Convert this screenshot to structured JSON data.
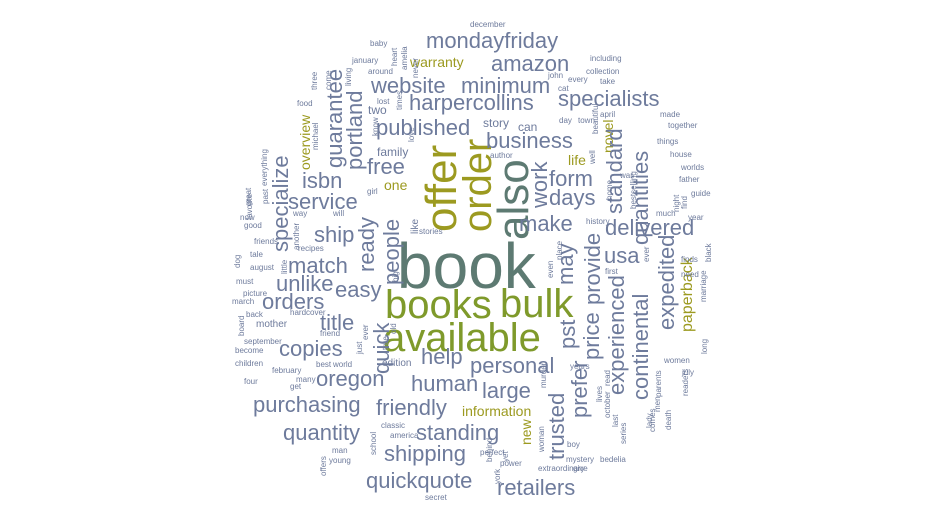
{
  "palette": {
    "background": "#ffffff",
    "slate": "#6e7b9c",
    "olive": "#7f9a2b",
    "teal": "#5d7a72",
    "mustard": "#9c9a20",
    "blue_gray": "#8090b0"
  },
  "words": [
    {
      "text": "book",
      "color": "#5d7a72"
    },
    {
      "text": "offer",
      "color": "#9c9a20"
    },
    {
      "text": "order",
      "color": "#9c9a20"
    },
    {
      "text": "also",
      "color": "#5d7a72"
    },
    {
      "text": "books",
      "color": "#7f9a2b"
    },
    {
      "text": "bulk",
      "color": "#7f9a2b"
    },
    {
      "text": "available",
      "color": "#7f9a2b"
    },
    {
      "text": "mondayfriday",
      "color": "#6e7b9c"
    },
    {
      "text": "amazon",
      "color": "#6e7b9c"
    },
    {
      "text": "website",
      "color": "#6e7b9c"
    },
    {
      "text": "minimum",
      "color": "#6e7b9c"
    },
    {
      "text": "harpercollins",
      "color": "#6e7b9c"
    },
    {
      "text": "specialists",
      "color": "#6e7b9c"
    },
    {
      "text": "published",
      "color": "#6e7b9c"
    },
    {
      "text": "business",
      "color": "#6e7b9c"
    },
    {
      "text": "form",
      "color": "#6e7b9c"
    },
    {
      "text": "days",
      "color": "#6e7b9c"
    },
    {
      "text": "make",
      "color": "#6e7b9c"
    },
    {
      "text": "delivered",
      "color": "#6e7b9c"
    },
    {
      "text": "usa",
      "color": "#6e7b9c"
    },
    {
      "text": "isbn",
      "color": "#6e7b9c"
    },
    {
      "text": "free",
      "color": "#6e7b9c"
    },
    {
      "text": "service",
      "color": "#6e7b9c"
    },
    {
      "text": "ship",
      "color": "#6e7b9c"
    },
    {
      "text": "match",
      "color": "#6e7b9c"
    },
    {
      "text": "unlike",
      "color": "#6e7b9c"
    },
    {
      "text": "orders",
      "color": "#6e7b9c"
    },
    {
      "text": "easy",
      "color": "#6e7b9c"
    },
    {
      "text": "title",
      "color": "#6e7b9c"
    },
    {
      "text": "copies",
      "color": "#6e7b9c"
    },
    {
      "text": "oregon",
      "color": "#6e7b9c"
    },
    {
      "text": "help",
      "color": "#6e7b9c"
    },
    {
      "text": "personal",
      "color": "#6e7b9c"
    },
    {
      "text": "human",
      "color": "#6e7b9c"
    },
    {
      "text": "large",
      "color": "#6e7b9c"
    },
    {
      "text": "purchasing",
      "color": "#6e7b9c"
    },
    {
      "text": "friendly",
      "color": "#6e7b9c"
    },
    {
      "text": "quantity",
      "color": "#6e7b9c"
    },
    {
      "text": "standing",
      "color": "#6e7b9c"
    },
    {
      "text": "shipping",
      "color": "#6e7b9c"
    },
    {
      "text": "quickquote",
      "color": "#6e7b9c"
    },
    {
      "text": "retailers",
      "color": "#6e7b9c"
    },
    {
      "text": "information",
      "color": "#9c9a20"
    },
    {
      "text": "warranty",
      "color": "#9c9a20"
    },
    {
      "text": "overview",
      "color": "#9c9a20"
    },
    {
      "text": "one",
      "color": "#9c9a20"
    },
    {
      "text": "life",
      "color": "#9c9a20"
    },
    {
      "text": "novel",
      "color": "#9c9a20"
    },
    {
      "text": "paperback",
      "color": "#9c9a20"
    },
    {
      "text": "new",
      "color": "#9c9a20"
    },
    {
      "text": "guarantee",
      "color": "#6e7b9c"
    },
    {
      "text": "portland",
      "color": "#6e7b9c"
    },
    {
      "text": "specialize",
      "color": "#6e7b9c"
    },
    {
      "text": "people",
      "color": "#6e7b9c"
    },
    {
      "text": "ready",
      "color": "#6e7b9c"
    },
    {
      "text": "quick",
      "color": "#6e7b9c"
    },
    {
      "text": "work",
      "color": "#6e7b9c"
    },
    {
      "text": "may",
      "color": "#6e7b9c"
    },
    {
      "text": "pst",
      "color": "#6e7b9c"
    },
    {
      "text": "provide",
      "color": "#6e7b9c"
    },
    {
      "text": "price",
      "color": "#6e7b9c"
    },
    {
      "text": "prefer",
      "color": "#6e7b9c"
    },
    {
      "text": "trusted",
      "color": "#6e7b9c"
    },
    {
      "text": "standard",
      "color": "#6e7b9c"
    },
    {
      "text": "quantities",
      "color": "#6e7b9c"
    },
    {
      "text": "experienced",
      "color": "#6e7b9c"
    },
    {
      "text": "continental",
      "color": "#6e7b9c"
    },
    {
      "text": "expedited",
      "color": "#6e7b9c"
    },
    {
      "text": "december",
      "color": "#6e7b9c"
    },
    {
      "text": "baby",
      "color": "#6e7b9c"
    },
    {
      "text": "including",
      "color": "#6e7b9c"
    },
    {
      "text": "january",
      "color": "#6e7b9c"
    },
    {
      "text": "around",
      "color": "#6e7b9c"
    },
    {
      "text": "collection",
      "color": "#6e7b9c"
    },
    {
      "text": "john",
      "color": "#6e7b9c"
    },
    {
      "text": "every",
      "color": "#6e7b9c"
    },
    {
      "text": "take",
      "color": "#6e7b9c"
    },
    {
      "text": "cat",
      "color": "#6e7b9c"
    },
    {
      "text": "food",
      "color": "#6e7b9c"
    },
    {
      "text": "two",
      "color": "#6e7b9c"
    },
    {
      "text": "lost",
      "color": "#6e7b9c"
    },
    {
      "text": "story",
      "color": "#6e7b9c"
    },
    {
      "text": "can",
      "color": "#6e7b9c"
    },
    {
      "text": "day",
      "color": "#6e7b9c"
    },
    {
      "text": "town",
      "color": "#6e7b9c"
    },
    {
      "text": "april",
      "color": "#6e7b9c"
    },
    {
      "text": "made",
      "color": "#6e7b9c"
    },
    {
      "text": "together",
      "color": "#6e7b9c"
    },
    {
      "text": "things",
      "color": "#6e7b9c"
    },
    {
      "text": "family",
      "color": "#6e7b9c"
    },
    {
      "text": "author",
      "color": "#6e7b9c"
    },
    {
      "text": "house",
      "color": "#6e7b9c"
    },
    {
      "text": "worlds",
      "color": "#6e7b9c"
    },
    {
      "text": "father",
      "color": "#6e7b9c"
    },
    {
      "text": "bestselling",
      "color": "#6e7b9c"
    },
    {
      "text": "home",
      "color": "#6e7b9c"
    },
    {
      "text": "war",
      "color": "#6e7b9c"
    },
    {
      "text": "night",
      "color": "#6e7b9c"
    },
    {
      "text": "guide",
      "color": "#6e7b9c"
    },
    {
      "text": "find",
      "color": "#6e7b9c"
    },
    {
      "text": "much",
      "color": "#6e7b9c"
    },
    {
      "text": "year",
      "color": "#6e7b9c"
    },
    {
      "text": "now",
      "color": "#6e7b9c"
    },
    {
      "text": "way",
      "color": "#6e7b9c"
    },
    {
      "text": "will",
      "color": "#6e7b9c"
    },
    {
      "text": "like",
      "color": "#6e7b9c"
    },
    {
      "text": "history",
      "color": "#6e7b9c"
    },
    {
      "text": "stories",
      "color": "#6e7b9c"
    },
    {
      "text": "friends",
      "color": "#6e7b9c"
    },
    {
      "text": "recipes",
      "color": "#6e7b9c"
    },
    {
      "text": "tale",
      "color": "#6e7b9c"
    },
    {
      "text": "good",
      "color": "#6e7b9c"
    },
    {
      "text": "august",
      "color": "#6e7b9c"
    },
    {
      "text": "must",
      "color": "#6e7b9c"
    },
    {
      "text": "picture",
      "color": "#6e7b9c"
    },
    {
      "text": "march",
      "color": "#6e7b9c"
    },
    {
      "text": "back",
      "color": "#6e7b9c"
    },
    {
      "text": "hardcover",
      "color": "#6e7b9c"
    },
    {
      "text": "mother",
      "color": "#6e7b9c"
    },
    {
      "text": "friend",
      "color": "#6e7b9c"
    },
    {
      "text": "september",
      "color": "#6e7b9c"
    },
    {
      "text": "become",
      "color": "#6e7b9c"
    },
    {
      "text": "children",
      "color": "#6e7b9c"
    },
    {
      "text": "february",
      "color": "#6e7b9c"
    },
    {
      "text": "four",
      "color": "#6e7b9c"
    },
    {
      "text": "many",
      "color": "#6e7b9c"
    },
    {
      "text": "get",
      "color": "#6e7b9c"
    },
    {
      "text": "best",
      "color": "#6e7b9c"
    },
    {
      "text": "world",
      "color": "#6e7b9c"
    },
    {
      "text": "edition",
      "color": "#6e7b9c"
    },
    {
      "text": "years",
      "color": "#6e7b9c"
    },
    {
      "text": "first",
      "color": "#6e7b9c"
    },
    {
      "text": "even",
      "color": "#6e7b9c"
    },
    {
      "text": "ever",
      "color": "#6e7b9c"
    },
    {
      "text": "place",
      "color": "#6e7b9c"
    },
    {
      "text": "finds",
      "color": "#6e7b9c"
    },
    {
      "text": "need",
      "color": "#6e7b9c"
    },
    {
      "text": "black",
      "color": "#6e7b9c"
    },
    {
      "text": "marriage",
      "color": "#6e7b9c"
    },
    {
      "text": "long",
      "color": "#6e7b9c"
    },
    {
      "text": "women",
      "color": "#6e7b9c"
    },
    {
      "text": "parents",
      "color": "#6e7b9c"
    },
    {
      "text": "july",
      "color": "#6e7b9c"
    },
    {
      "text": "readers",
      "color": "#6e7b9c"
    },
    {
      "text": "classic",
      "color": "#6e7b9c"
    },
    {
      "text": "man",
      "color": "#6e7b9c"
    },
    {
      "text": "america",
      "color": "#6e7b9c"
    },
    {
      "text": "young",
      "color": "#6e7b9c"
    },
    {
      "text": "school",
      "color": "#6e7b9c"
    },
    {
      "text": "woman",
      "color": "#6e7b9c"
    },
    {
      "text": "boy",
      "color": "#6e7b9c"
    },
    {
      "text": "perfect",
      "color": "#6e7b9c"
    },
    {
      "text": "power",
      "color": "#6e7b9c"
    },
    {
      "text": "mystery",
      "color": "#6e7b9c"
    },
    {
      "text": "bedelia",
      "color": "#6e7b9c"
    },
    {
      "text": "extraordinary",
      "color": "#6e7b9c"
    },
    {
      "text": "give",
      "color": "#6e7b9c"
    },
    {
      "text": "secret",
      "color": "#6e7b9c"
    },
    {
      "text": "october",
      "color": "#6e7b9c"
    },
    {
      "text": "lady",
      "color": "#6e7b9c"
    },
    {
      "text": "men",
      "color": "#6e7b9c"
    },
    {
      "text": "comes",
      "color": "#6e7b9c"
    },
    {
      "text": "death",
      "color": "#6e7b9c"
    },
    {
      "text": "last",
      "color": "#6e7b9c"
    },
    {
      "text": "series",
      "color": "#6e7b9c"
    },
    {
      "text": "lives",
      "color": "#6e7b9c"
    },
    {
      "text": "read",
      "color": "#6e7b9c"
    },
    {
      "text": "murder",
      "color": "#6e7b9c"
    },
    {
      "text": "york",
      "color": "#6e7b9c"
    },
    {
      "text": "yet",
      "color": "#6e7b9c"
    },
    {
      "text": "behind",
      "color": "#6e7b9c"
    },
    {
      "text": "offers",
      "color": "#6e7b9c"
    },
    {
      "text": "just",
      "color": "#6e7b9c"
    },
    {
      "text": "true",
      "color": "#6e7b9c"
    },
    {
      "text": "old",
      "color": "#6e7b9c"
    },
    {
      "text": "big",
      "color": "#6e7b9c"
    },
    {
      "text": "girl",
      "color": "#6e7b9c"
    },
    {
      "text": "well",
      "color": "#6e7b9c"
    },
    {
      "text": "know",
      "color": "#6e7b9c"
    },
    {
      "text": "michael",
      "color": "#6e7b9c"
    },
    {
      "text": "three",
      "color": "#6e7b9c"
    },
    {
      "text": "come",
      "color": "#6e7b9c"
    },
    {
      "text": "living",
      "color": "#6e7b9c"
    },
    {
      "text": "heart",
      "color": "#6e7b9c"
    },
    {
      "text": "amelia",
      "color": "#6e7b9c"
    },
    {
      "text": "never",
      "color": "#6e7b9c"
    },
    {
      "text": "love",
      "color": "#6e7b9c"
    },
    {
      "text": "times",
      "color": "#6e7b9c"
    },
    {
      "text": "beautiful",
      "color": "#6e7b9c"
    },
    {
      "text": "everything",
      "color": "#6e7b9c"
    },
    {
      "text": "great",
      "color": "#6e7b9c"
    },
    {
      "text": "past",
      "color": "#6e7b9c"
    },
    {
      "text": "favorite",
      "color": "#6e7b9c"
    },
    {
      "text": "dog",
      "color": "#6e7b9c"
    },
    {
      "text": "little",
      "color": "#6e7b9c"
    },
    {
      "text": "another",
      "color": "#6e7b9c"
    },
    {
      "text": "board",
      "color": "#6e7b9c"
    },
    {
      "text": "ever",
      "color": "#6e7b9c"
    }
  ]
}
